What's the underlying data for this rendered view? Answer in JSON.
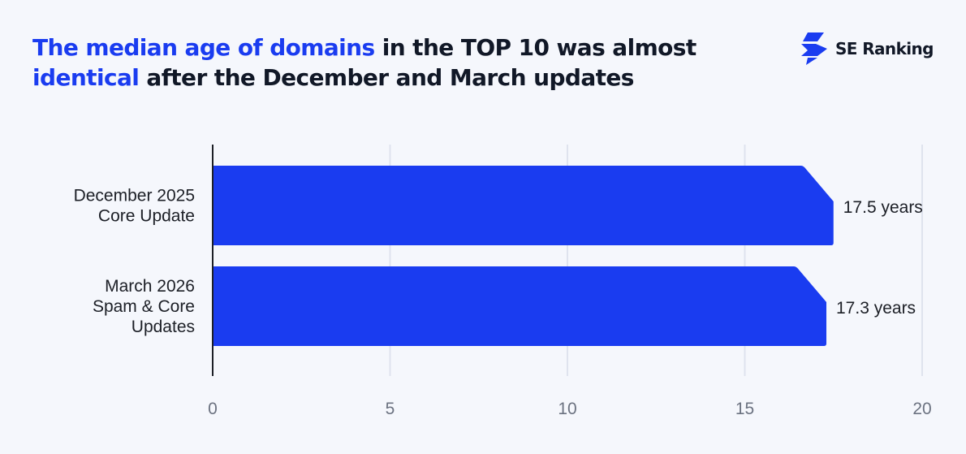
{
  "title": {
    "part1": "The median age of domains",
    "part2": " in the TOP 10 was almost ",
    "part3": "identical",
    "part4": " after the December and March updates"
  },
  "brand": {
    "name": "SE Ranking",
    "icon": "se-ranking-logo-icon"
  },
  "colors": {
    "accent": "#1a3cf0",
    "text": "#111827",
    "tick": "#6b7280",
    "grid": "#dfe3ee",
    "background": "#f5f7fc"
  },
  "chart_data": {
    "type": "bar",
    "orientation": "horizontal",
    "categories": [
      [
        "December 2025",
        "Core Update"
      ],
      [
        "March 2026",
        "Spam & Core",
        "Updates"
      ]
    ],
    "values": [
      17.5,
      17.3
    ],
    "value_labels": [
      "17.5 years",
      "17.3 years"
    ],
    "xlim": [
      0,
      20
    ],
    "xticks": [
      0,
      5,
      10,
      15,
      20
    ],
    "tick_labels": [
      "0",
      "5",
      "10",
      "15",
      "20"
    ],
    "grid": true,
    "legend": "none"
  }
}
